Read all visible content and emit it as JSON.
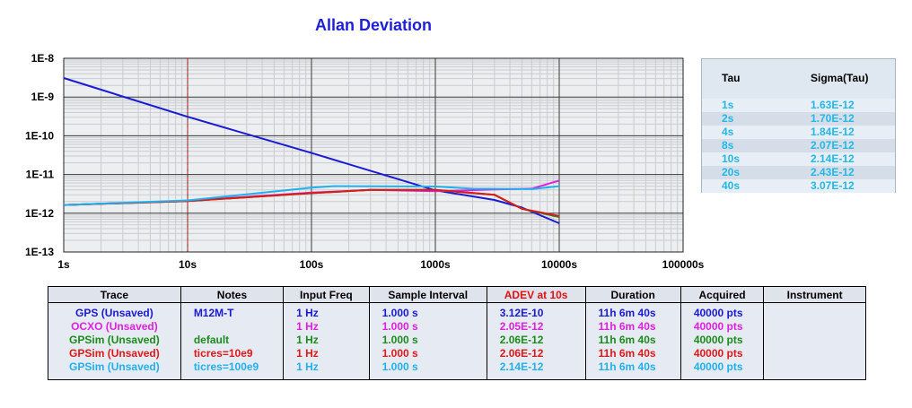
{
  "title": "Allan Deviation",
  "chart_data": {
    "type": "line",
    "title": "Allan Deviation",
    "xscale": "log",
    "yscale": "log",
    "xlim": [
      1,
      100000
    ],
    "ylim": [
      1e-13,
      1e-08
    ],
    "grid": true,
    "x_tick_labels": [
      "1s",
      "10s",
      "100s",
      "1000s",
      "10000s",
      "100000s"
    ],
    "y_tick_labels": [
      "1E-8",
      "1E-9",
      "1E-10",
      "1E-11",
      "1E-12",
      "1E-13"
    ],
    "marker_tau": 10,
    "series": [
      {
        "name": "GPS (Unsaved)",
        "color": "#1a1ad6",
        "points": [
          [
            1,
            3.1e-09
          ],
          [
            10,
            3.1e-10
          ],
          [
            100,
            3.6e-11
          ],
          [
            1000,
            3.9e-12
          ],
          [
            3000,
            2.2e-12
          ],
          [
            5000,
            1.4e-12
          ],
          [
            10000,
            5.5e-13
          ]
        ]
      },
      {
        "name": "OCXO (Unsaved)",
        "color": "#e020e0",
        "points": [
          [
            1,
            1.63e-12
          ],
          [
            10,
            2.1e-12
          ],
          [
            100,
            3.4e-12
          ],
          [
            300,
            4e-12
          ],
          [
            1000,
            3.7e-12
          ],
          [
            3000,
            4.1e-12
          ],
          [
            6000,
            4.3e-12
          ],
          [
            10000,
            7e-12
          ]
        ]
      },
      {
        "name": "GPSim (Unsaved)",
        "color": "#1a8c1a",
        "points": [
          [
            1,
            1.63e-12
          ],
          [
            10,
            2.06e-12
          ],
          [
            100,
            3.3e-12
          ],
          [
            300,
            4e-12
          ],
          [
            1000,
            4e-12
          ],
          [
            3000,
            3e-12
          ],
          [
            5000,
            1.3e-12
          ],
          [
            10000,
            8e-13
          ]
        ]
      },
      {
        "name": "GPSim (Unsaved)",
        "color": "#dd1a1a",
        "points": [
          [
            1,
            1.63e-12
          ],
          [
            10,
            2.06e-12
          ],
          [
            100,
            3.3e-12
          ],
          [
            300,
            4e-12
          ],
          [
            1000,
            4e-12
          ],
          [
            3000,
            3e-12
          ],
          [
            5000,
            1.3e-12
          ],
          [
            10000,
            8.5e-13
          ]
        ]
      },
      {
        "name": "GPSim (Unsaved)",
        "color": "#20b0f0",
        "points": [
          [
            1,
            1.63e-12
          ],
          [
            10,
            2.14e-12
          ],
          [
            100,
            4.6e-12
          ],
          [
            150,
            5e-12
          ],
          [
            1000,
            4.9e-12
          ],
          [
            2000,
            4.3e-12
          ],
          [
            6000,
            4.2e-12
          ],
          [
            10000,
            5e-12
          ]
        ]
      }
    ]
  },
  "tau_panel": {
    "header_tau": "Tau",
    "header_sigma": "Sigma(Tau)",
    "rows": [
      {
        "tau": "1s",
        "sigma": "1.63E-12"
      },
      {
        "tau": "2s",
        "sigma": "1.70E-12"
      },
      {
        "tau": "4s",
        "sigma": "1.84E-12"
      },
      {
        "tau": "8s",
        "sigma": "2.07E-12"
      },
      {
        "tau": "10s",
        "sigma": "2.14E-12"
      },
      {
        "tau": "20s",
        "sigma": "2.43E-12"
      },
      {
        "tau": "40s",
        "sigma": "3.07E-12"
      }
    ]
  },
  "legend_table": {
    "headers": [
      "Trace",
      "Notes",
      "Input Freq",
      "Sample Interval",
      "ADEV at 10s",
      "Duration",
      "Acquired",
      "Instrument"
    ],
    "adev_header_color": "#e01010",
    "rows": [
      {
        "trace": "GPS (Unsaved)",
        "notes": "M12M-T",
        "freq": "1 Hz",
        "interval": "1.000 s",
        "adev": "3.12E-10",
        "duration": "11h 6m 40s",
        "acquired": "40000 pts",
        "instrument": "",
        "color": "#1a1ad6"
      },
      {
        "trace": "OCXO (Unsaved)",
        "notes": "",
        "freq": "1 Hz",
        "interval": "1.000 s",
        "adev": "2.05E-12",
        "duration": "11h 6m 40s",
        "acquired": "40000 pts",
        "instrument": "",
        "color": "#e020e0"
      },
      {
        "trace": "GPSim (Unsaved)",
        "notes": "default",
        "freq": "1 Hz",
        "interval": "1.000 s",
        "adev": "2.06E-12",
        "duration": "11h 6m 40s",
        "acquired": "40000 pts",
        "instrument": "",
        "color": "#1a8c1a"
      },
      {
        "trace": "GPSim (Unsaved)",
        "notes": "ticres=10e9",
        "freq": "1 Hz",
        "interval": "1.000 s",
        "adev": "2.06E-12",
        "duration": "11h 6m 40s",
        "acquired": "40000 pts",
        "instrument": "",
        "color": "#dd1a1a"
      },
      {
        "trace": "GPSim (Unsaved)",
        "notes": "ticres=100e9",
        "freq": "1 Hz",
        "interval": "1.000 s",
        "adev": "2.14E-12",
        "duration": "11h 6m 40s",
        "acquired": "40000 pts",
        "instrument": "",
        "color": "#20b0f0"
      }
    ]
  }
}
